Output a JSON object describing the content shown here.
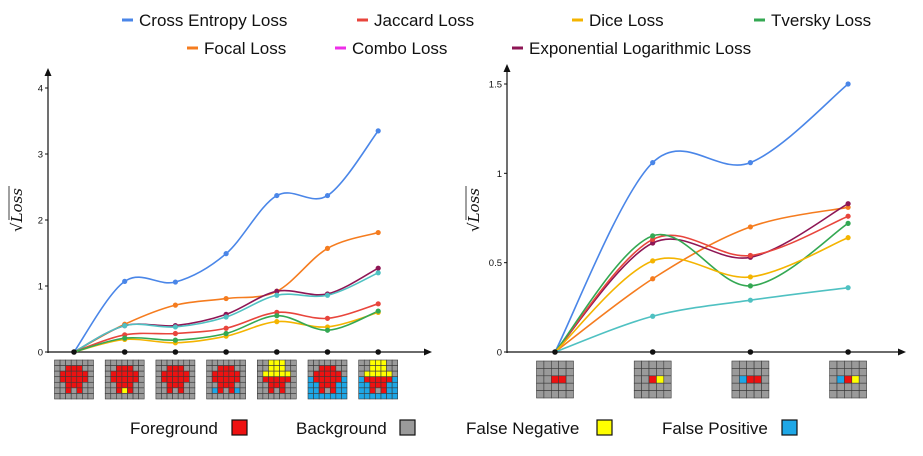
{
  "legend": {
    "row1": [
      {
        "label": "Cross Entropy Loss",
        "color": "#4a86e8"
      },
      {
        "label": "Jaccard Loss",
        "color": "#e8453c"
      },
      {
        "label": "Dice Loss",
        "color": "#f4b400"
      },
      {
        "label": "Tversky Loss",
        "color": "#34a853"
      }
    ],
    "row2": [
      {
        "label": "Focal Loss",
        "color": "#f57c1f"
      },
      {
        "label": "Combo Loss",
        "color": "#ee2ee8"
      },
      {
        "label": "Exponential Logarithmic Loss",
        "color": "#8e1655"
      }
    ]
  },
  "pixel_key": [
    {
      "label": "Foreground",
      "color": "#ee1111"
    },
    {
      "label": "Background",
      "color": "#9a9a9a"
    },
    {
      "label": "False Negative",
      "color": "#ffff00"
    },
    {
      "label": "False Positive",
      "color": "#1ea7e6"
    }
  ],
  "chart_data": [
    {
      "type": "line",
      "ylabel": "√Loss",
      "ylim": [
        0,
        4
      ],
      "y_ticks": [
        0,
        1,
        2,
        3,
        4
      ],
      "y_tick_labels": [
        "0",
        "1",
        "2",
        "3",
        "4"
      ],
      "x": [
        0,
        1,
        2,
        3,
        4,
        5,
        6
      ],
      "x_tick_labels": [],
      "x_tick_markers": "7x7 segmentation-mask thumbnails",
      "series": [
        {
          "key": "cross_entropy",
          "color": "#4a86e8",
          "values": [
            0,
            1.07,
            1.06,
            1.49,
            2.37,
            2.37,
            3.35
          ]
        },
        {
          "key": "focal",
          "color": "#f57c1f",
          "values": [
            0,
            0.42,
            0.71,
            0.81,
            0.92,
            1.57,
            1.81
          ]
        },
        {
          "key": "exp_log",
          "color": "#8e1655",
          "values": [
            0,
            0.4,
            0.4,
            0.57,
            0.92,
            0.88,
            1.27
          ]
        },
        {
          "key": "teal",
          "color": "#4fc1c2",
          "values": [
            0,
            0.4,
            0.38,
            0.53,
            0.86,
            0.86,
            1.2
          ]
        },
        {
          "key": "jaccard",
          "color": "#e8453c",
          "values": [
            0,
            0.26,
            0.28,
            0.36,
            0.6,
            0.51,
            0.73
          ]
        },
        {
          "key": "dice",
          "color": "#f4b400",
          "values": [
            0,
            0.19,
            0.14,
            0.24,
            0.46,
            0.38,
            0.6
          ]
        },
        {
          "key": "tversky",
          "color": "#34a853",
          "values": [
            0,
            0.21,
            0.18,
            0.28,
            0.55,
            0.33,
            0.62
          ]
        }
      ]
    },
    {
      "type": "line",
      "ylabel": "√Loss",
      "ylim": [
        0,
        1.5
      ],
      "y_ticks": [
        0,
        0.5,
        1,
        1.5
      ],
      "y_tick_labels": [
        "0",
        "0.5",
        "1",
        "1.5"
      ],
      "x": [
        0,
        1,
        2,
        3
      ],
      "x_tick_labels": [],
      "x_tick_markers": "5x5 segmentation-mask thumbnails",
      "series": [
        {
          "key": "cross_entropy",
          "color": "#4a86e8",
          "values": [
            0,
            1.06,
            1.06,
            1.5
          ]
        },
        {
          "key": "focal",
          "color": "#f57c1f",
          "values": [
            0,
            0.41,
            0.7,
            0.81
          ]
        },
        {
          "key": "exp_log",
          "color": "#8e1655",
          "values": [
            0,
            0.61,
            0.53,
            0.83
          ]
        },
        {
          "key": "jaccard",
          "color": "#e8453c",
          "values": [
            0,
            0.63,
            0.54,
            0.76
          ]
        },
        {
          "key": "tversky",
          "color": "#34a853",
          "values": [
            0,
            0.65,
            0.37,
            0.72
          ]
        },
        {
          "key": "dice",
          "color": "#f4b400",
          "values": [
            0,
            0.51,
            0.42,
            0.64
          ]
        },
        {
          "key": "teal",
          "color": "#4fc1c2",
          "values": [
            0,
            0.2,
            0.29,
            0.36
          ]
        }
      ]
    }
  ]
}
